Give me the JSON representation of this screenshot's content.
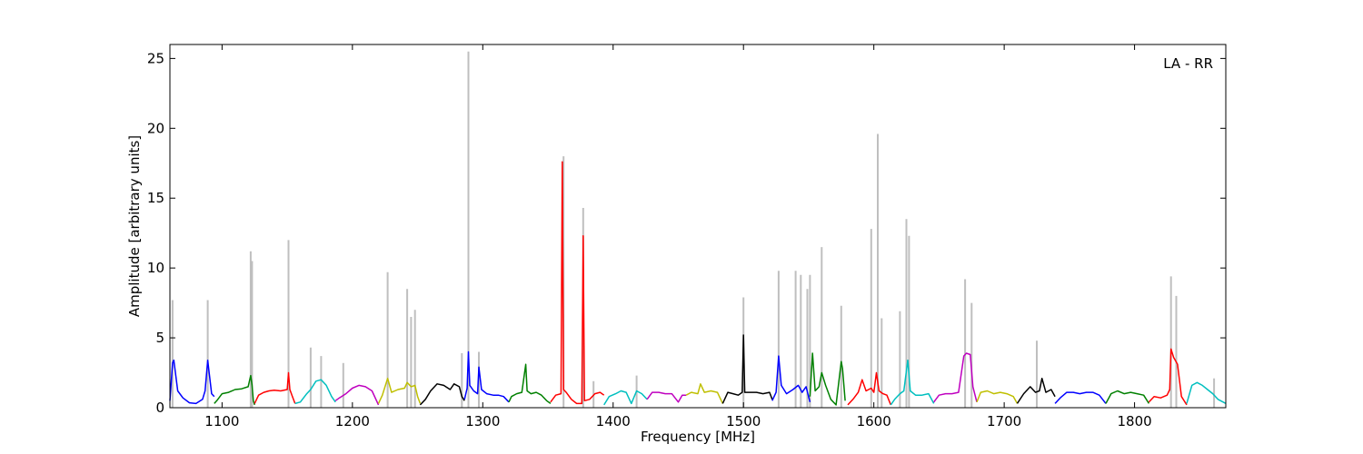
{
  "chart_data": {
    "type": "line",
    "annotation": "LA - RR",
    "xlabel": "Frequency [MHz]",
    "ylabel": "Amplitude [arbitrary units]",
    "xlim": [
      1060,
      1870
    ],
    "ylim": [
      0,
      26
    ],
    "xticks": [
      1100,
      1200,
      1300,
      1400,
      1500,
      1600,
      1700,
      1800
    ],
    "yticks": [
      0,
      5,
      10,
      15,
      20,
      25
    ],
    "grid": false,
    "raw_color": "#bfbfbf",
    "raw_spikes": [
      [
        1062,
        7.7
      ],
      [
        1089,
        7.7
      ],
      [
        1122,
        11.2
      ],
      [
        1123,
        10.5
      ],
      [
        1151,
        12.0
      ],
      [
        1168,
        4.3
      ],
      [
        1176,
        3.7
      ],
      [
        1193,
        3.2
      ],
      [
        1227,
        9.7
      ],
      [
        1242,
        8.5
      ],
      [
        1245,
        6.5
      ],
      [
        1248,
        7.0
      ],
      [
        1284,
        3.9
      ],
      [
        1289,
        25.5
      ],
      [
        1297,
        4.0
      ],
      [
        1377,
        14.3
      ],
      [
        1362,
        18.0
      ],
      [
        1385,
        1.9
      ],
      [
        1418,
        2.3
      ],
      [
        1500,
        7.9
      ],
      [
        1527,
        9.8
      ],
      [
        1540,
        9.8
      ],
      [
        1544,
        9.5
      ],
      [
        1549,
        8.5
      ],
      [
        1551,
        9.5
      ],
      [
        1560,
        11.5
      ],
      [
        1575,
        7.3
      ],
      [
        1598,
        12.8
      ],
      [
        1603,
        19.6
      ],
      [
        1606,
        6.4
      ],
      [
        1620,
        6.9
      ],
      [
        1625,
        13.5
      ],
      [
        1627,
        12.3
      ],
      [
        1670,
        9.2
      ],
      [
        1675,
        7.5
      ],
      [
        1725,
        4.8
      ],
      [
        1828,
        9.4
      ],
      [
        1832,
        8.0
      ],
      [
        1861,
        2.1
      ]
    ],
    "series": [
      {
        "color": "#0000ff",
        "x": [
          1060,
          1062,
          1063,
          1066,
          1070,
          1075,
          1080,
          1085,
          1087,
          1089,
          1090,
          1092,
          1094
        ],
        "y": [
          0.5,
          3.2,
          3.4,
          1.2,
          0.7,
          0.35,
          0.3,
          0.6,
          1.2,
          3.4,
          2.6,
          1.0,
          0.8
        ]
      },
      {
        "color": "#008000",
        "x": [
          1094,
          1096,
          1100,
          1105,
          1110,
          1115,
          1120,
          1122,
          1123,
          1124,
          1125
        ],
        "y": [
          0.3,
          0.5,
          1.0,
          1.1,
          1.3,
          1.35,
          1.5,
          2.3,
          1.6,
          0.5,
          0.2
        ]
      },
      {
        "color": "#ff0000",
        "x": [
          1125,
          1128,
          1132,
          1136,
          1140,
          1145,
          1150,
          1151,
          1152,
          1154,
          1156
        ],
        "y": [
          0.3,
          0.9,
          1.1,
          1.2,
          1.25,
          1.2,
          1.3,
          2.5,
          1.3,
          0.8,
          0.3
        ]
      },
      {
        "color": "#00bfbf",
        "x": [
          1156,
          1160,
          1165,
          1168,
          1172,
          1176,
          1180,
          1184,
          1187
        ],
        "y": [
          0.3,
          0.4,
          1.0,
          1.3,
          1.9,
          2.0,
          1.6,
          0.8,
          0.4
        ]
      },
      {
        "color": "#bf00bf",
        "x": [
          1187,
          1190,
          1195,
          1200,
          1205,
          1210,
          1215,
          1218,
          1220
        ],
        "y": [
          0.5,
          0.7,
          1.0,
          1.4,
          1.6,
          1.5,
          1.2,
          0.6,
          0.2
        ]
      },
      {
        "color": "#bfbf00",
        "x": [
          1220,
          1223,
          1227,
          1230,
          1235,
          1240,
          1242,
          1245,
          1248,
          1250,
          1252
        ],
        "y": [
          0.3,
          0.9,
          2.1,
          1.1,
          1.3,
          1.4,
          1.8,
          1.5,
          1.6,
          0.8,
          0.3
        ]
      },
      {
        "color": "#000000",
        "x": [
          1252,
          1256,
          1260,
          1265,
          1270,
          1275,
          1278,
          1282,
          1284,
          1286
        ],
        "y": [
          0.2,
          0.6,
          1.2,
          1.7,
          1.6,
          1.3,
          1.7,
          1.5,
          0.8,
          0.5
        ]
      },
      {
        "color": "#0000ff",
        "x": [
          1286,
          1288,
          1289,
          1290,
          1293,
          1296,
          1297,
          1299,
          1303,
          1308,
          1312,
          1316,
          1320
        ],
        "y": [
          0.6,
          1.4,
          4.0,
          1.6,
          1.2,
          1.0,
          2.9,
          1.3,
          1.0,
          0.9,
          0.9,
          0.8,
          0.4
        ]
      },
      {
        "color": "#008000",
        "x": [
          1320,
          1322,
          1326,
          1330,
          1333,
          1334,
          1337,
          1341,
          1345,
          1349,
          1352
        ],
        "y": [
          0.4,
          0.8,
          1.0,
          1.1,
          3.1,
          1.2,
          1.0,
          1.1,
          0.9,
          0.5,
          0.3
        ]
      },
      {
        "color": "#ff0000",
        "x": [
          1352,
          1356,
          1360,
          1361,
          1362,
          1364,
          1368,
          1372,
          1376,
          1377,
          1378,
          1382,
          1386,
          1390,
          1393
        ],
        "y": [
          0.4,
          0.9,
          1.0,
          17.6,
          1.3,
          1.1,
          0.6,
          0.3,
          0.3,
          12.3,
          0.5,
          0.6,
          1.0,
          1.1,
          0.9
        ]
      },
      {
        "color": "#00bfbf",
        "x": [
          1393,
          1397,
          1402,
          1406,
          1410,
          1414,
          1418,
          1422,
          1426
        ],
        "y": [
          0.2,
          0.8,
          1.0,
          1.2,
          1.1,
          0.3,
          1.2,
          1.0,
          0.6
        ]
      },
      {
        "color": "#bf00bf",
        "x": [
          1426,
          1430,
          1435,
          1440,
          1445,
          1450,
          1453,
          1456
        ],
        "y": [
          0.6,
          1.1,
          1.1,
          1.0,
          1.0,
          0.4,
          0.9,
          0.9
        ]
      },
      {
        "color": "#bfbf00",
        "x": [
          1456,
          1460,
          1465,
          1467,
          1470,
          1475,
          1480,
          1484
        ],
        "y": [
          0.9,
          1.1,
          1.0,
          1.7,
          1.1,
          1.2,
          1.1,
          0.3
        ]
      },
      {
        "color": "#000000",
        "x": [
          1484,
          1488,
          1492,
          1496,
          1499,
          1500,
          1501,
          1505,
          1510,
          1515,
          1520,
          1522
        ],
        "y": [
          0.3,
          1.1,
          1.0,
          0.9,
          1.1,
          5.2,
          1.1,
          1.1,
          1.1,
          1.0,
          1.1,
          0.6
        ]
      },
      {
        "color": "#0000ff",
        "x": [
          1522,
          1525,
          1527,
          1529,
          1533,
          1538,
          1542,
          1545,
          1548,
          1551
        ],
        "y": [
          0.5,
          1.1,
          3.7,
          1.6,
          1.0,
          1.3,
          1.6,
          1.1,
          1.5,
          0.4
        ]
      },
      {
        "color": "#008000",
        "x": [
          1551,
          1553,
          1555,
          1558,
          1560,
          1563,
          1567,
          1571,
          1575,
          1576,
          1578
        ],
        "y": [
          0.8,
          3.9,
          1.2,
          1.5,
          2.5,
          1.6,
          0.6,
          0.2,
          3.3,
          2.8,
          0.5
        ]
      },
      {
        "color": "#ff0000",
        "x": [
          1580,
          1584,
          1588,
          1591,
          1594,
          1598,
          1600,
          1602,
          1604,
          1607,
          1610,
          1613
        ],
        "y": [
          0.2,
          0.6,
          1.1,
          2.0,
          1.2,
          1.4,
          1.1,
          2.5,
          1.2,
          1.0,
          0.9,
          0.2
        ]
      },
      {
        "color": "#00bfbf",
        "x": [
          1613,
          1616,
          1620,
          1623,
          1626,
          1628,
          1632,
          1637,
          1642,
          1646
        ],
        "y": [
          0.2,
          0.6,
          1.0,
          1.2,
          3.4,
          1.2,
          0.9,
          0.9,
          1.0,
          0.3
        ]
      },
      {
        "color": "#bf00bf",
        "x": [
          1646,
          1650,
          1655,
          1660,
          1665,
          1669,
          1671,
          1674,
          1676,
          1679
        ],
        "y": [
          0.4,
          0.9,
          1.0,
          1.0,
          1.1,
          3.7,
          3.9,
          3.8,
          1.5,
          0.4
        ]
      },
      {
        "color": "#bfbf00",
        "x": [
          1679,
          1682,
          1687,
          1692,
          1697,
          1702,
          1707,
          1710
        ],
        "y": [
          0.4,
          1.1,
          1.2,
          1.0,
          1.1,
          1.0,
          0.8,
          0.3
        ]
      },
      {
        "color": "#000000",
        "x": [
          1710,
          1715,
          1720,
          1724,
          1727,
          1729,
          1732,
          1736,
          1739
        ],
        "y": [
          0.3,
          1.0,
          1.5,
          1.1,
          1.2,
          2.1,
          1.1,
          1.3,
          0.8
        ]
      },
      {
        "color": "#0000ff",
        "x": [
          1739,
          1743,
          1748,
          1753,
          1758,
          1763,
          1768,
          1773,
          1778
        ],
        "y": [
          0.3,
          0.7,
          1.1,
          1.1,
          1.0,
          1.1,
          1.1,
          0.9,
          0.3
        ]
      },
      {
        "color": "#008000",
        "x": [
          1778,
          1782,
          1787,
          1792,
          1797,
          1802,
          1807,
          1811
        ],
        "y": [
          0.3,
          1.0,
          1.2,
          1.0,
          1.1,
          1.0,
          0.9,
          0.3
        ]
      },
      {
        "color": "#ff0000",
        "x": [
          1811,
          1815,
          1820,
          1825,
          1827,
          1828,
          1830,
          1833,
          1836,
          1840
        ],
        "y": [
          0.4,
          0.8,
          0.7,
          0.9,
          1.3,
          4.2,
          3.6,
          3.1,
          0.8,
          0.2
        ]
      },
      {
        "color": "#00bfbf",
        "x": [
          1840,
          1844,
          1848,
          1852,
          1856,
          1860,
          1864,
          1868,
          1870
        ],
        "y": [
          0.3,
          1.6,
          1.8,
          1.6,
          1.3,
          1.0,
          0.6,
          0.4,
          0.3
        ]
      }
    ]
  }
}
